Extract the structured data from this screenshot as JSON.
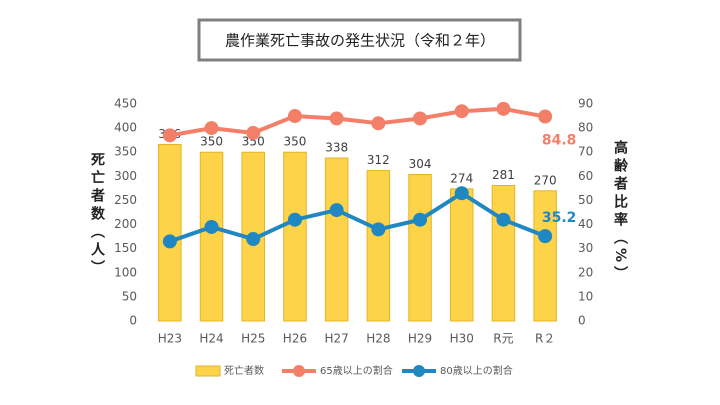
{
  "chart_data": {
    "type": "bar_line",
    "title": "農作業死亡事故の発生状況（令和２年）",
    "y_label": "死亡者数（人）",
    "y2_label": "高齢者比率（%）",
    "categories": [
      "H23",
      "H24",
      "H25",
      "H26",
      "H27",
      "H28",
      "H29",
      "H30",
      "R元",
      "R２"
    ],
    "series": [
      {
        "name": "死亡者数",
        "type": "bar",
        "color": "#FDD34A",
        "values": [
          366,
          350,
          350,
          350,
          338,
          312,
          304,
          274,
          281,
          270
        ]
      },
      {
        "name": "65歳以上の割合",
        "type": "line",
        "axis": "y2",
        "color": "#F47F68",
        "values": [
          77,
          80,
          78,
          85,
          84,
          82,
          84,
          87,
          88,
          84.8
        ]
      },
      {
        "name": "80歳以上の割合",
        "type": "line",
        "axis": "y2",
        "color": "#1F88C2",
        "values": [
          33,
          39,
          34,
          42,
          46,
          38,
          42,
          53,
          42,
          35.2
        ]
      }
    ],
    "ylim": [
      0,
      450
    ],
    "yticks": [
      0,
      50,
      100,
      150,
      200,
      250,
      300,
      350,
      400,
      450
    ],
    "y2lim": [
      0,
      90
    ],
    "y2ticks": [
      0,
      10,
      20,
      30,
      40,
      50,
      60,
      70,
      80,
      90
    ],
    "grid": false
  }
}
